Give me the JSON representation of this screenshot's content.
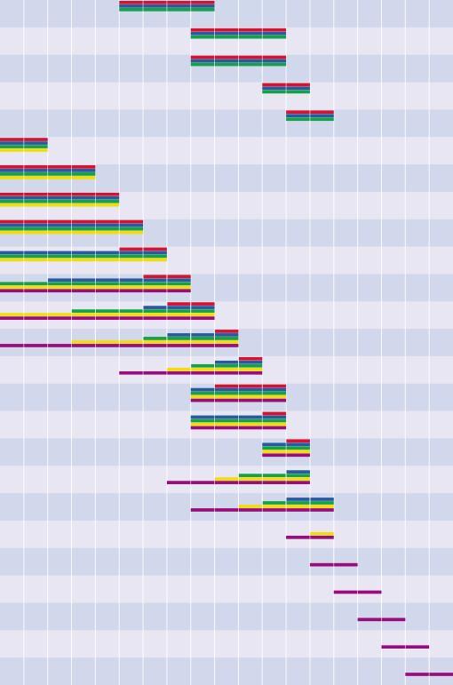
{
  "chart_data": {
    "type": "heatmap",
    "columns": 19,
    "rows": 25,
    "grid": true,
    "colors": {
      "row_light": "#e8e6f3",
      "row_dark": "#d2d8ec",
      "gridline": "#ffffff",
      "red": "#d4132f",
      "blue": "#29599f",
      "green": "#14a14a",
      "yellow": "#f2dd0a",
      "purple": "#990c7a"
    },
    "series_order": [
      "red",
      "blue",
      "green",
      "yellow",
      "purple"
    ],
    "segments": [
      {
        "row": 0,
        "start": 5,
        "end": 9,
        "series": [
          "red",
          "blue",
          "green"
        ]
      },
      {
        "row": 1,
        "start": 8,
        "end": 12,
        "series": [
          "red",
          "blue",
          "green"
        ]
      },
      {
        "row": 2,
        "start": 8,
        "end": 12,
        "series": [
          "red",
          "blue",
          "green"
        ]
      },
      {
        "row": 3,
        "start": 11,
        "end": 13,
        "series": [
          "red",
          "blue",
          "green"
        ]
      },
      {
        "row": 4,
        "start": 12,
        "end": 14,
        "series": [
          "red",
          "blue",
          "green"
        ]
      },
      {
        "row": 5,
        "start": 0,
        "end": 2,
        "series": [
          "red",
          "blue",
          "green",
          "yellow"
        ]
      },
      {
        "row": 6,
        "start": 0,
        "end": 4,
        "series": [
          "red",
          "blue",
          "green",
          "yellow"
        ]
      },
      {
        "row": 7,
        "start": 0,
        "end": 5,
        "series": [
          "red",
          "blue",
          "green",
          "yellow"
        ]
      },
      {
        "row": 8,
        "start": 0,
        "end": 6,
        "series": [
          "red",
          "blue",
          "green",
          "yellow"
        ]
      },
      {
        "row": 9,
        "start": 5,
        "end": 7,
        "series": [
          "red"
        ]
      },
      {
        "row": 9,
        "start": 0,
        "end": 7,
        "series": [
          "blue",
          "green",
          "yellow"
        ]
      },
      {
        "row": 10,
        "start": 6,
        "end": 8,
        "series": [
          "red"
        ]
      },
      {
        "row": 10,
        "start": 2,
        "end": 8,
        "series": [
          "blue"
        ]
      },
      {
        "row": 10,
        "start": 0,
        "end": 8,
        "series": [
          "green",
          "yellow",
          "purple"
        ]
      },
      {
        "row": 11,
        "start": 7,
        "end": 9,
        "series": [
          "red"
        ]
      },
      {
        "row": 11,
        "start": 6,
        "end": 9,
        "series": [
          "blue"
        ]
      },
      {
        "row": 11,
        "start": 3,
        "end": 9,
        "series": [
          "green"
        ]
      },
      {
        "row": 11,
        "start": 0,
        "end": 9,
        "series": [
          "yellow",
          "purple"
        ]
      },
      {
        "row": 12,
        "start": 9,
        "end": 10,
        "series": [
          "red"
        ]
      },
      {
        "row": 12,
        "start": 7,
        "end": 10,
        "series": [
          "blue"
        ]
      },
      {
        "row": 12,
        "start": 6,
        "end": 10,
        "series": [
          "green"
        ]
      },
      {
        "row": 12,
        "start": 3,
        "end": 10,
        "series": [
          "yellow"
        ]
      },
      {
        "row": 12,
        "start": 0,
        "end": 10,
        "series": [
          "purple"
        ]
      },
      {
        "row": 13,
        "start": 10,
        "end": 11,
        "series": [
          "red"
        ]
      },
      {
        "row": 13,
        "start": 9,
        "end": 11,
        "series": [
          "blue"
        ]
      },
      {
        "row": 13,
        "start": 8,
        "end": 11,
        "series": [
          "green"
        ]
      },
      {
        "row": 13,
        "start": 7,
        "end": 11,
        "series": [
          "yellow"
        ]
      },
      {
        "row": 13,
        "start": 5,
        "end": 11,
        "series": [
          "purple"
        ]
      },
      {
        "row": 14,
        "start": 9,
        "end": 12,
        "series": [
          "red"
        ]
      },
      {
        "row": 14,
        "start": 8,
        "end": 12,
        "series": [
          "blue",
          "green",
          "yellow",
          "purple"
        ]
      },
      {
        "row": 15,
        "start": 11,
        "end": 12,
        "series": [
          "red"
        ]
      },
      {
        "row": 15,
        "start": 8,
        "end": 12,
        "series": [
          "blue",
          "green",
          "yellow",
          "purple"
        ]
      },
      {
        "row": 16,
        "start": 12,
        "end": 13,
        "series": [
          "red"
        ]
      },
      {
        "row": 16,
        "start": 11,
        "end": 13,
        "series": [
          "blue",
          "green",
          "yellow",
          "purple"
        ]
      },
      {
        "row": 17,
        "start": 12,
        "end": 13,
        "series": [
          "blue"
        ]
      },
      {
        "row": 17,
        "start": 10,
        "end": 13,
        "series": [
          "green"
        ]
      },
      {
        "row": 17,
        "start": 9,
        "end": 13,
        "series": [
          "yellow"
        ]
      },
      {
        "row": 17,
        "start": 7,
        "end": 13,
        "series": [
          "purple"
        ]
      },
      {
        "row": 18,
        "start": 12,
        "end": 14,
        "series": [
          "blue"
        ]
      },
      {
        "row": 18,
        "start": 11,
        "end": 14,
        "series": [
          "green"
        ]
      },
      {
        "row": 18,
        "start": 10,
        "end": 14,
        "series": [
          "yellow"
        ]
      },
      {
        "row": 18,
        "start": 8,
        "end": 14,
        "series": [
          "purple"
        ]
      },
      {
        "row": 19,
        "start": 13,
        "end": 14,
        "series": [
          "yellow"
        ]
      },
      {
        "row": 19,
        "start": 12,
        "end": 14,
        "series": [
          "purple"
        ]
      },
      {
        "row": 20,
        "start": 13,
        "end": 15,
        "series": [
          "purple"
        ]
      },
      {
        "row": 21,
        "start": 14,
        "end": 16,
        "series": [
          "purple"
        ]
      },
      {
        "row": 22,
        "start": 15,
        "end": 17,
        "series": [
          "purple"
        ]
      },
      {
        "row": 23,
        "start": 16,
        "end": 18,
        "series": [
          "purple"
        ]
      },
      {
        "row": 24,
        "start": 17,
        "end": 19,
        "series": [
          "purple"
        ]
      }
    ]
  }
}
